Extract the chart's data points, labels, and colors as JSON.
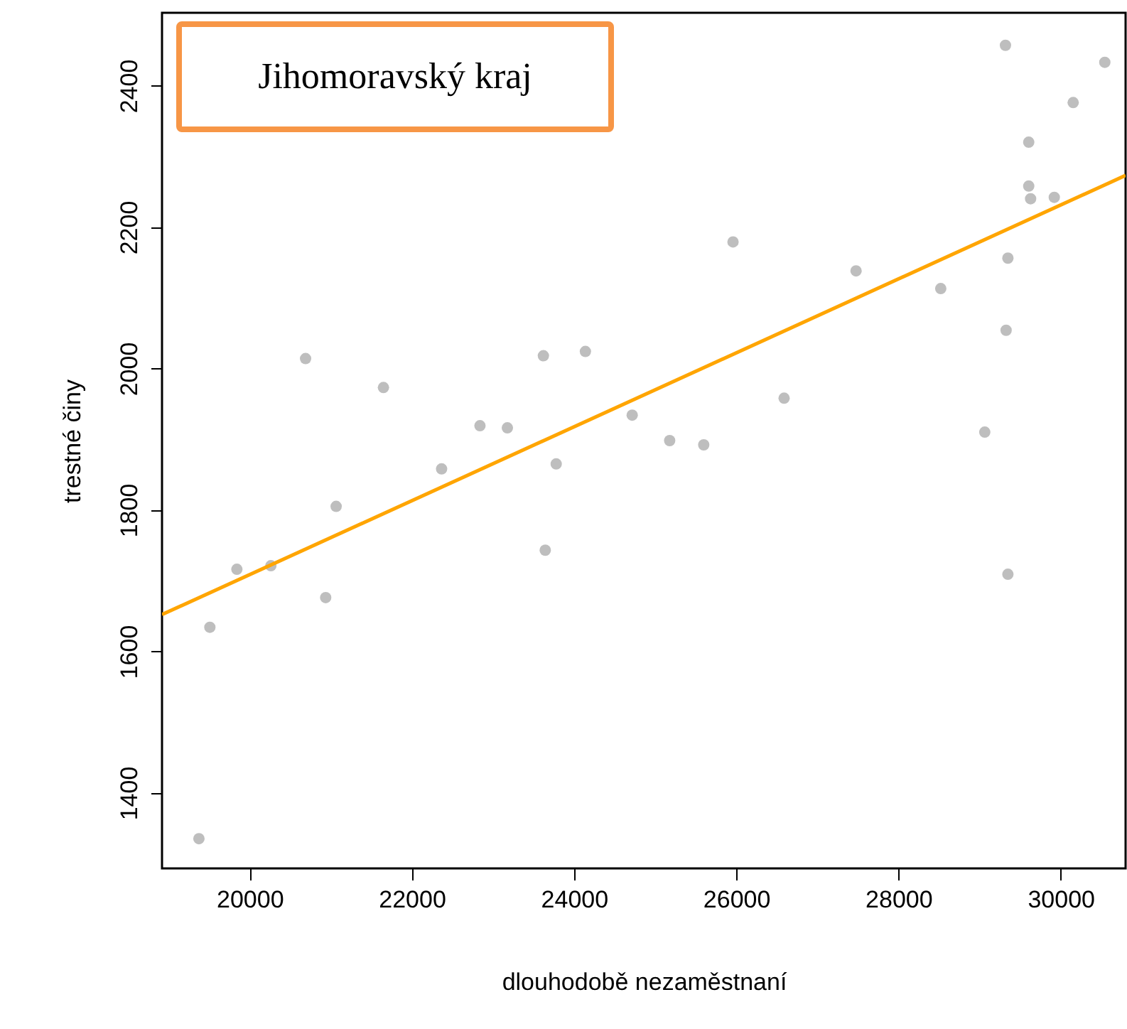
{
  "chart_data": {
    "type": "scatter",
    "xlabel": "dlouhodobě nezaměstnaní",
    "ylabel": "trestné činy",
    "annotations": [
      "Jihomoravský kraj"
    ],
    "xlim": [
      18920,
      30800
    ],
    "ylim": [
      1293,
      2503
    ],
    "xticks": [
      20000,
      22000,
      24000,
      26000,
      28000,
      30000
    ],
    "yticks": [
      1400,
      1600,
      1800,
      2000,
      2200,
      2400
    ],
    "grid": false,
    "series": [
      {
        "color": "#bebebe",
        "marker": "circle",
        "x": [
          20690,
          21650,
          22840,
          23178,
          23622,
          24140,
          24717,
          29319,
          30544,
          30154,
          29606,
          29606,
          29629,
          29921,
          25960,
          27477,
          29349,
          28521,
          29327,
          26590,
          25179,
          25599,
          29064,
          29349,
          22367,
          23780,
          21067,
          19843,
          20262,
          20938,
          23645,
          19510,
          19375
        ],
        "values": [
          2014,
          1973,
          1919,
          1916,
          2018,
          2024,
          1934,
          2457,
          2433,
          2376,
          2320,
          2258,
          2240,
          2242,
          2179,
          2138,
          2156,
          2113,
          2054,
          1958,
          1898,
          1892,
          1910,
          1709,
          1858,
          1865,
          1805,
          1716,
          1721,
          1676,
          1743,
          1634,
          1335
        ]
      },
      {
        "type": "line",
        "color": "#ffa500",
        "line_style": "solid",
        "x": [
          18920,
          30800
        ],
        "values": [
          1652,
          2273
        ]
      }
    ]
  }
}
